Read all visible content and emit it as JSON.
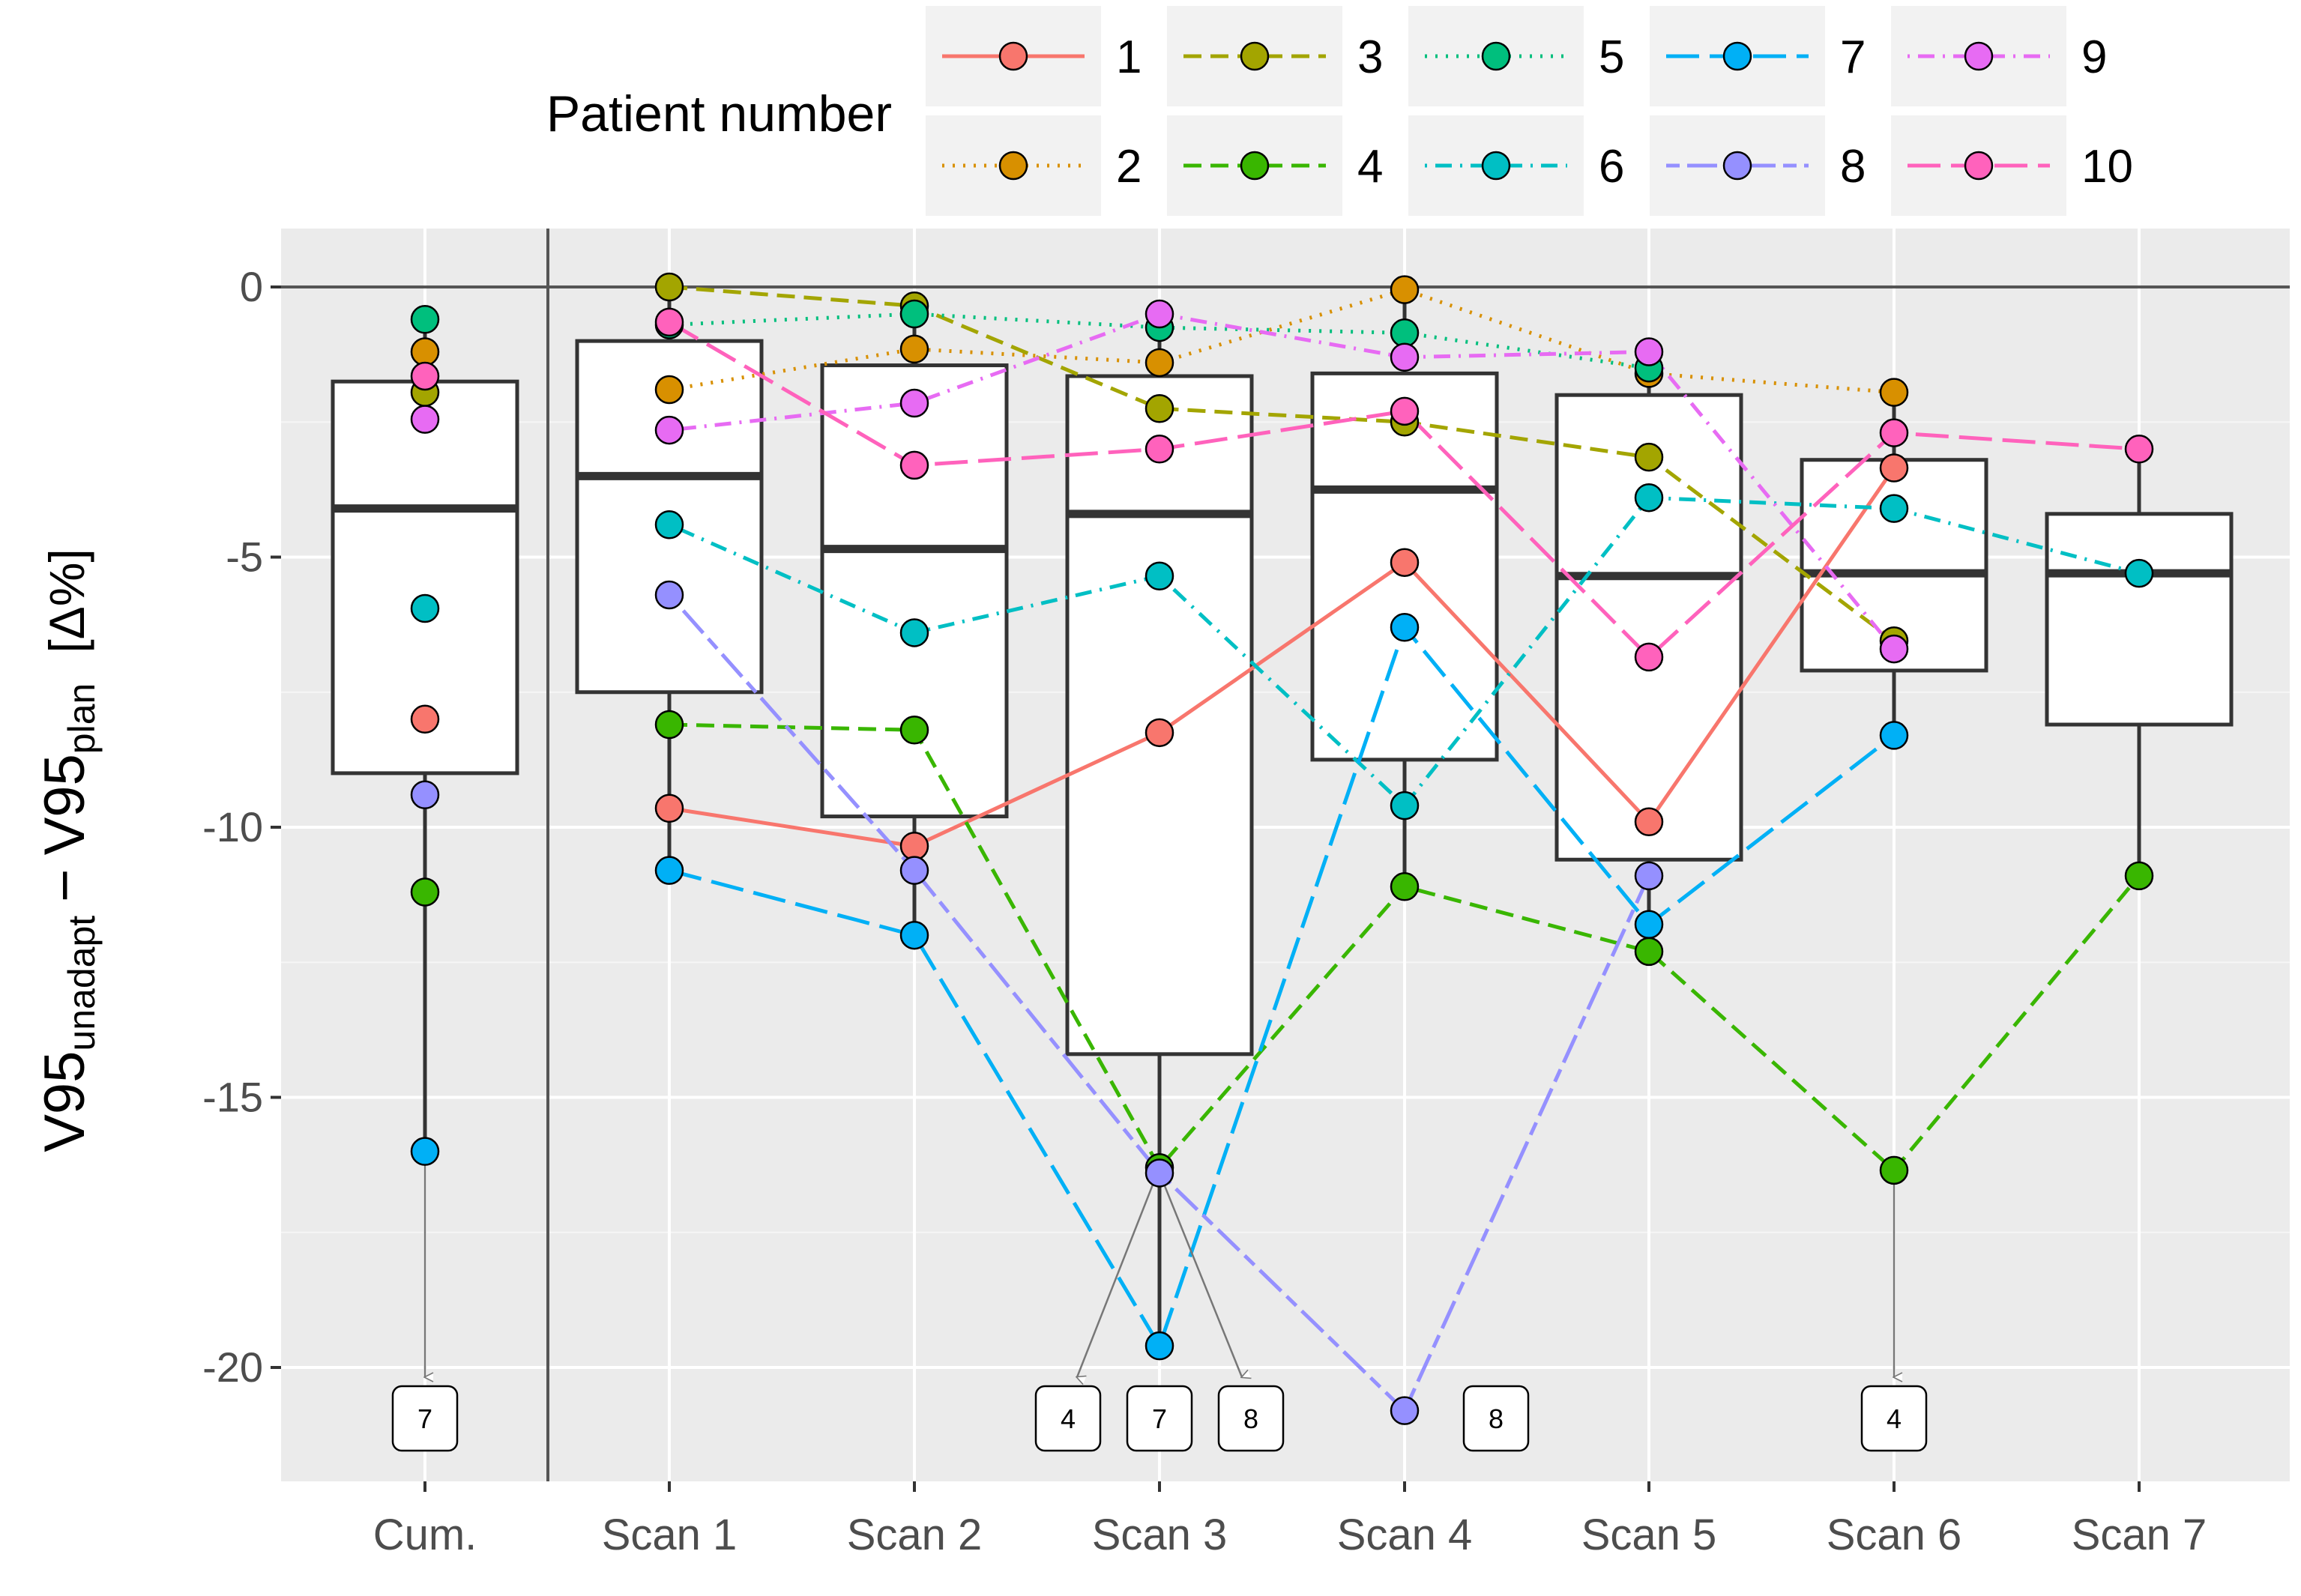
{
  "chart_data": {
    "type": "box",
    "ylabel": {
      "main_1": "V95",
      "sub_1": "unadapt",
      "minus": "−",
      "main_2": "V95",
      "sub_2": "plan",
      "unit": "[Δ%]"
    },
    "ylim": [
      -21.8,
      1.0
    ],
    "y_ticks": [
      0,
      -5,
      -10,
      -15,
      -20
    ],
    "y_tick_labels": [
      "0",
      "-5",
      "-10",
      "-15",
      "-20"
    ],
    "categories": [
      "Cum.",
      "Scan 1",
      "Scan 2",
      "Scan 3",
      "Scan 4",
      "Scan 5",
      "Scan 6",
      "Scan 7"
    ],
    "grid": true,
    "legend": {
      "title": "Patient number",
      "placement": "top",
      "entries": [
        "1",
        "2",
        "3",
        "4",
        "5",
        "6",
        "7",
        "8",
        "9",
        "10"
      ]
    },
    "boxes": [
      {
        "category": "Cum.",
        "q1": -9.0,
        "median": -4.1,
        "q3": -1.75,
        "whisker_low": -16.0,
        "whisker_high": -0.6
      },
      {
        "category": "Scan 1",
        "q1": -7.5,
        "median": -3.5,
        "q3": -1.0,
        "whisker_low": -10.8,
        "whisker_high": 0.0
      },
      {
        "category": "Scan 2",
        "q1": -9.8,
        "median": -4.85,
        "q3": -1.45,
        "whisker_low": -12.0,
        "whisker_high": -0.4
      },
      {
        "category": "Scan 3",
        "q1": -14.2,
        "median": -4.2,
        "q3": -1.65,
        "whisker_low": -19.6,
        "whisker_high": -0.5
      },
      {
        "category": "Scan 4",
        "q1": -8.75,
        "median": -3.75,
        "q3": -1.6,
        "whisker_low": -11.1,
        "whisker_high": -0.05
      },
      {
        "category": "Scan 5",
        "q1": -10.6,
        "median": -5.35,
        "q3": -2.0,
        "whisker_low": -12.3,
        "whisker_high": -1.2
      },
      {
        "category": "Scan 6",
        "q1": -7.1,
        "median": -5.3,
        "q3": -3.2,
        "whisker_low": -8.3,
        "whisker_high": -2.0
      },
      {
        "category": "Scan 7",
        "q1": -8.1,
        "median": -5.3,
        "q3": -4.2,
        "whisker_low": -10.9,
        "whisker_high": -3.0
      }
    ],
    "series": [
      {
        "name": "1",
        "color": "#F8766D",
        "dash": "solid",
        "cum": -8.0,
        "values": [
          -9.65,
          -10.35,
          -8.25,
          -5.1,
          -9.9,
          -3.35,
          null
        ]
      },
      {
        "name": "2",
        "color": "#D89000",
        "dash": "dotted",
        "cum": -1.2,
        "values": [
          -1.9,
          -1.15,
          -1.4,
          -0.05,
          -1.6,
          -1.95,
          null
        ]
      },
      {
        "name": "3",
        "color": "#A3A500",
        "dash": "dashed",
        "cum": -1.95,
        "values": [
          0.0,
          -0.35,
          -2.25,
          -2.5,
          -3.15,
          -6.55,
          null
        ]
      },
      {
        "name": "4",
        "color": "#39B600",
        "dash": "dashed",
        "cum": -11.2,
        "values": [
          -8.1,
          -8.2,
          -16.3,
          -11.1,
          -12.3,
          -16.35,
          -10.9
        ]
      },
      {
        "name": "5",
        "color": "#00BF7D",
        "dash": "dotted",
        "cum": -0.6,
        "values": [
          -0.7,
          -0.5,
          -0.75,
          -0.85,
          -1.5,
          null,
          null
        ]
      },
      {
        "name": "6",
        "color": "#00BFC4",
        "dash": "dotdash",
        "cum": -5.95,
        "values": [
          -4.4,
          -6.4,
          -5.35,
          -9.6,
          -3.9,
          -4.1,
          -5.3
        ]
      },
      {
        "name": "7",
        "color": "#00B0F6",
        "dash": "longdash",
        "cum": -16.0,
        "values": [
          -10.8,
          -12.0,
          -19.6,
          -6.3,
          -11.8,
          -8.3,
          null
        ]
      },
      {
        "name": "8",
        "color": "#9590FF",
        "dash": "twodash",
        "cum": -9.4,
        "values": [
          -5.7,
          -10.8,
          -16.4,
          -20.8,
          -10.9,
          null,
          null
        ]
      },
      {
        "name": "9",
        "color": "#E76BF3",
        "dash": "dotdash",
        "cum": -2.45,
        "values": [
          -2.65,
          -2.15,
          -0.5,
          -1.3,
          -1.2,
          -6.7,
          null
        ]
      },
      {
        "name": "10",
        "color": "#FF62BC",
        "dash": "longdash",
        "cum": -1.65,
        "values": [
          -0.65,
          -3.3,
          -3.0,
          -2.3,
          -6.85,
          -2.7,
          -3.0
        ]
      }
    ],
    "out_of_range_labels": [
      {
        "category": "Cum.",
        "label": "7",
        "from": -16.0,
        "arrow": true,
        "shift": 0
      },
      {
        "category": "Scan 3",
        "label": "4",
        "from": -16.3,
        "arrow": true,
        "shift": -1
      },
      {
        "category": "Scan 3",
        "label": "7",
        "from": null,
        "arrow": false,
        "shift": 0
      },
      {
        "category": "Scan 3",
        "label": "8",
        "from": -16.4,
        "arrow": true,
        "shift": 1
      },
      {
        "category": "Scan 4",
        "label": "8",
        "from": null,
        "arrow": false,
        "shift": 1
      },
      {
        "category": "Scan 6",
        "label": "4",
        "from": -16.35,
        "arrow": true,
        "shift": 0
      }
    ]
  }
}
